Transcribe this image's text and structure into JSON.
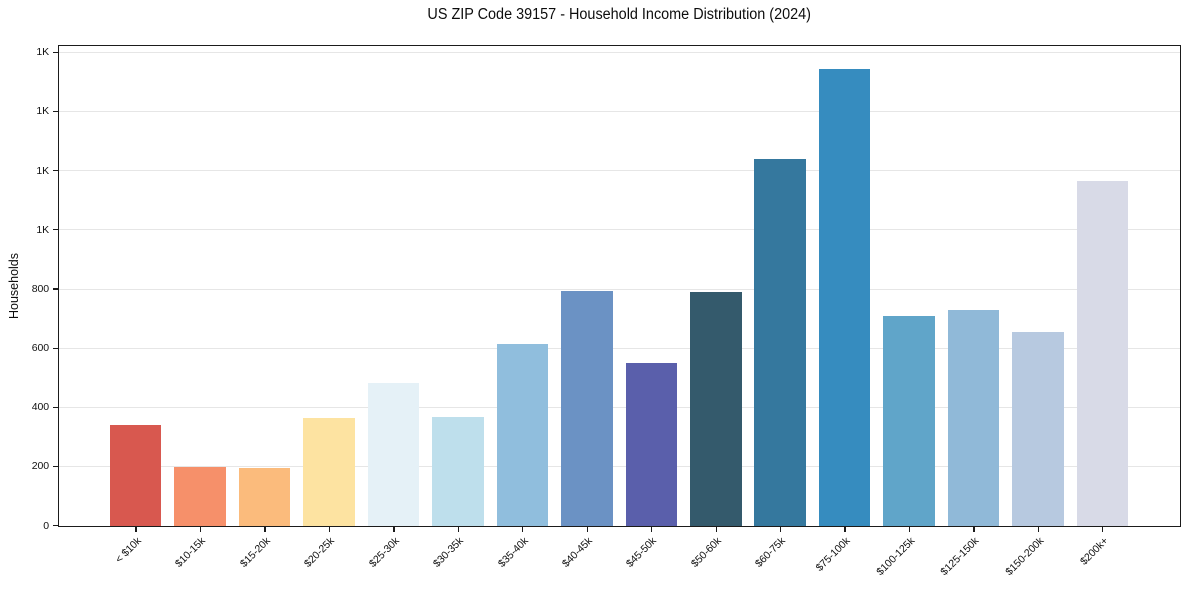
{
  "chart_data": {
    "type": "bar",
    "title": "US ZIP Code 39157 - Household Income Distribution (2024)",
    "xlabel": "",
    "ylabel": "Households",
    "categories": [
      "< $10k",
      "$10-15k",
      "$15-20k",
      "$20-25k",
      "$25-30k",
      "$30-35k",
      "$35-40k",
      "$40-45k",
      "$45-50k",
      "$50-60k",
      "$60-75k",
      "$75-100k",
      "$100-125k",
      "$125-150k",
      "$150-200k",
      "$200k+"
    ],
    "values": [
      340,
      200,
      195,
      365,
      485,
      368,
      615,
      795,
      550,
      790,
      1240,
      1545,
      710,
      730,
      655,
      1165
    ],
    "bar_colors": [
      "#d8584f",
      "#f6906a",
      "#fbbb7c",
      "#fde3a1",
      "#e5f1f7",
      "#bedfec",
      "#90bedd",
      "#6b92c4",
      "#5a5fab",
      "#345a6c",
      "#35789e",
      "#368cbf",
      "#60a5c9",
      "#90b9d8",
      "#b7c9e0",
      "#d8dae7"
    ],
    "ylim": [
      0,
      1620
    ],
    "yticks": [
      {
        "value": 0,
        "label": "0"
      },
      {
        "value": 200,
        "label": "200"
      },
      {
        "value": 400,
        "label": "400"
      },
      {
        "value": 600,
        "label": "600"
      },
      {
        "value": 800,
        "label": "800"
      },
      {
        "value": 1000,
        "label": "1K"
      },
      {
        "value": 1200,
        "label": "1K"
      },
      {
        "value": 1400,
        "label": "1K"
      },
      {
        "value": 1600,
        "label": "1K"
      }
    ],
    "grid": "horizontal-only",
    "legend": "none",
    "x_tick_rotation_deg": 45,
    "bar_width_fraction": 0.8,
    "x_margin_slots": 1.19
  }
}
